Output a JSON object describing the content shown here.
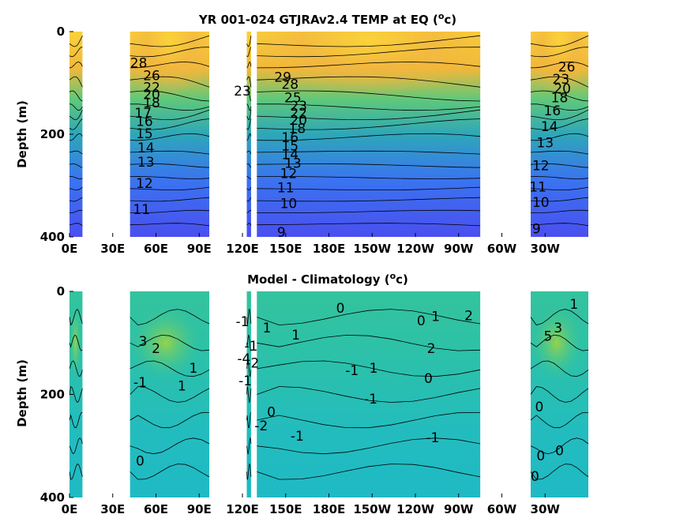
{
  "chart_data": [
    {
      "type": "heatmap",
      "title": "YR 001-024 GTJRAv2.4 TEMP at EQ (",
      "title_unit": "o",
      "title_tail": "c)",
      "ylabel": "Depth (m)",
      "xlabel": "",
      "x_ticks": [
        "0E",
        "30E",
        "60E",
        "90E",
        "120E",
        "150E",
        "180E",
        "150W",
        "120W",
        "90W",
        "60W",
        "30W"
      ],
      "x_tick_lon": [
        0,
        30,
        60,
        90,
        120,
        150,
        180,
        210,
        240,
        270,
        300,
        330
      ],
      "y_ticks": [
        "0",
        "200",
        "400"
      ],
      "y_tick_vals": [
        0,
        200,
        400
      ],
      "xlim": [
        0,
        360
      ],
      "ylim": [
        400,
        0
      ],
      "colors": {
        "warm": "#f9d13a",
        "mid": "#31b7a0",
        "cool": "#4a5af0"
      },
      "ocean_segments_lon": [
        [
          0,
          9
        ],
        [
          42,
          97
        ],
        [
          123,
          126
        ],
        [
          130,
          285
        ],
        [
          320,
          360
        ]
      ],
      "contour_labels": [
        {
          "t": "29",
          "lon": 148,
          "z": 90
        },
        {
          "t": "28",
          "lon": 48,
          "z": 62
        },
        {
          "t": "26",
          "lon": 57,
          "z": 87
        },
        {
          "t": "22",
          "lon": 57,
          "z": 110
        },
        {
          "t": "20",
          "lon": 57,
          "z": 124
        },
        {
          "t": "18",
          "lon": 57,
          "z": 140
        },
        {
          "t": "17",
          "lon": 51,
          "z": 160
        },
        {
          "t": "16",
          "lon": 52,
          "z": 176
        },
        {
          "t": "15",
          "lon": 52,
          "z": 200
        },
        {
          "t": "14",
          "lon": 53,
          "z": 228
        },
        {
          "t": "13",
          "lon": 53,
          "z": 255
        },
        {
          "t": "12",
          "lon": 52,
          "z": 297
        },
        {
          "t": "11",
          "lon": 50,
          "z": 348
        },
        {
          "t": "23",
          "lon": 120,
          "z": 117
        },
        {
          "t": "28",
          "lon": 153,
          "z": 104
        },
        {
          "t": "25",
          "lon": 155,
          "z": 130
        },
        {
          "t": "23",
          "lon": 159,
          "z": 146
        },
        {
          "t": "22",
          "lon": 159,
          "z": 160
        },
        {
          "t": "20",
          "lon": 159,
          "z": 174
        },
        {
          "t": "18",
          "lon": 158,
          "z": 190
        },
        {
          "t": "16",
          "lon": 153,
          "z": 208
        },
        {
          "t": "15",
          "lon": 153,
          "z": 224
        },
        {
          "t": "14",
          "lon": 153,
          "z": 241
        },
        {
          "t": "13",
          "lon": 155,
          "z": 258
        },
        {
          "t": "12",
          "lon": 152,
          "z": 278
        },
        {
          "t": "11",
          "lon": 150,
          "z": 305
        },
        {
          "t": "10",
          "lon": 152,
          "z": 336
        },
        {
          "t": "9",
          "lon": 147,
          "z": 392
        },
        {
          "t": "26",
          "lon": 345,
          "z": 70
        },
        {
          "t": "23",
          "lon": 341,
          "z": 94
        },
        {
          "t": "20",
          "lon": 342,
          "z": 112
        },
        {
          "t": "18",
          "lon": 340,
          "z": 130
        },
        {
          "t": "16",
          "lon": 335,
          "z": 155
        },
        {
          "t": "14",
          "lon": 333,
          "z": 186
        },
        {
          "t": "13",
          "lon": 330,
          "z": 218
        },
        {
          "t": "12",
          "lon": 327,
          "z": 262
        },
        {
          "t": "11",
          "lon": 325,
          "z": 304
        },
        {
          "t": "10",
          "lon": 327,
          "z": 334
        },
        {
          "t": "9",
          "lon": 324,
          "z": 385
        }
      ]
    },
    {
      "type": "heatmap",
      "title": "Model - Climatology (",
      "title_unit": "o",
      "title_tail": "c)",
      "ylabel": "Depth (m)",
      "xlabel": "",
      "x_ticks": [
        "0E",
        "30E",
        "60E",
        "90E",
        "120E",
        "150E",
        "180E",
        "150W",
        "120W",
        "90W",
        "60W",
        "30W"
      ],
      "x_tick_lon": [
        0,
        30,
        60,
        90,
        120,
        150,
        180,
        210,
        240,
        270,
        300,
        330
      ],
      "y_ticks": [
        "0",
        "200",
        "400"
      ],
      "y_tick_vals": [
        0,
        200,
        400
      ],
      "xlim": [
        0,
        360
      ],
      "ylim": [
        400,
        0
      ],
      "colors": {
        "warm": "#9bd23a",
        "mid": "#34bfa8",
        "cool": "#1bb8cc"
      },
      "ocean_segments_lon": [
        [
          0,
          9
        ],
        [
          42,
          97
        ],
        [
          123,
          126
        ],
        [
          130,
          285
        ],
        [
          320,
          360
        ]
      ],
      "contour_labels": [
        {
          "t": "3",
          "lon": 51,
          "z": 98
        },
        {
          "t": "2",
          "lon": 60,
          "z": 112
        },
        {
          "t": "1",
          "lon": 86,
          "z": 150
        },
        {
          "t": "1",
          "lon": 78,
          "z": 185
        },
        {
          "t": "-1",
          "lon": 49,
          "z": 178
        },
        {
          "t": "0",
          "lon": 49,
          "z": 330
        },
        {
          "t": "-1",
          "lon": 120,
          "z": 60
        },
        {
          "t": "-1",
          "lon": 126,
          "z": 107
        },
        {
          "t": "-4",
          "lon": 121,
          "z": 132
        },
        {
          "t": "-2",
          "lon": 127,
          "z": 140
        },
        {
          "t": "-1",
          "lon": 122,
          "z": 175
        },
        {
          "t": "-2",
          "lon": 133,
          "z": 262
        },
        {
          "t": "1",
          "lon": 137,
          "z": 72
        },
        {
          "t": "1",
          "lon": 157,
          "z": 86
        },
        {
          "t": "0",
          "lon": 188,
          "z": 34
        },
        {
          "t": "0",
          "lon": 140,
          "z": 235
        },
        {
          "t": "-1",
          "lon": 158,
          "z": 282
        },
        {
          "t": "-1",
          "lon": 196,
          "z": 155
        },
        {
          "t": "1",
          "lon": 211,
          "z": 150
        },
        {
          "t": "-1",
          "lon": 209,
          "z": 210
        },
        {
          "t": "0",
          "lon": 244,
          "z": 58
        },
        {
          "t": "1",
          "lon": 254,
          "z": 50
        },
        {
          "t": "2",
          "lon": 277,
          "z": 48
        },
        {
          "t": "2",
          "lon": 251,
          "z": 112
        },
        {
          "t": "0",
          "lon": 249,
          "z": 170
        },
        {
          "t": "-1",
          "lon": 252,
          "z": 285
        },
        {
          "t": "1",
          "lon": 350,
          "z": 26
        },
        {
          "t": "3",
          "lon": 339,
          "z": 72
        },
        {
          "t": "5",
          "lon": 332,
          "z": 88
        },
        {
          "t": "0",
          "lon": 326,
          "z": 225
        },
        {
          "t": "0",
          "lon": 327,
          "z": 320
        },
        {
          "t": "0",
          "lon": 340,
          "z": 310
        },
        {
          "t": "0",
          "lon": 323,
          "z": 360
        }
      ]
    }
  ]
}
